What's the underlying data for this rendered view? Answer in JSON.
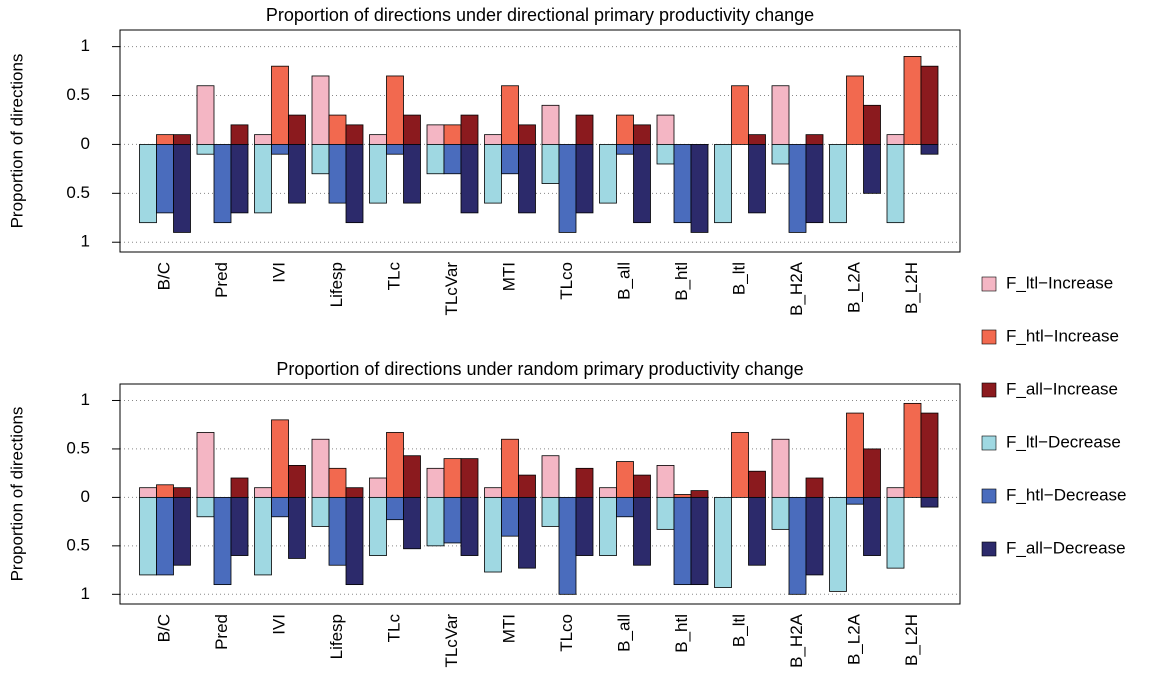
{
  "chart_data": [
    {
      "type": "bar",
      "title": "Proportion of directions under directional primary productivity change",
      "y_label": "Proportion of directions",
      "legend": "right",
      "categories": [
        "B/C",
        "Pred",
        "IVI",
        "Lifesp",
        "TLc",
        "TLcVar",
        "MTI",
        "TLco",
        "B_all",
        "B_htl",
        "B_ltl",
        "B_H2A",
        "B_L2A",
        "B_L2H"
      ],
      "ylim": [
        -1.1,
        1.17
      ],
      "yticks": [
        {
          "value": -1,
          "label": "1"
        },
        {
          "value": -0.5,
          "label": "0.5"
        },
        0,
        0.5,
        1
      ],
      "grid": true,
      "series": [
        {
          "name": "F_ltl−Increase",
          "color": "#f4b6c4",
          "values": [
            0,
            0.6,
            0.1,
            0.7,
            0.1,
            0.2,
            0.1,
            0.4,
            0,
            0.3,
            0,
            0.6,
            0,
            0.1
          ]
        },
        {
          "name": "F_htl−Increase",
          "color": "#f2694f",
          "values": [
            0.1,
            0,
            0.8,
            0.3,
            0.7,
            0.2,
            0.6,
            0,
            0.3,
            0,
            0.6,
            0,
            0.7,
            0.9
          ]
        },
        {
          "name": "F_all−Increase",
          "color": "#8b1a1e",
          "values": [
            0.1,
            0.2,
            0.3,
            0.2,
            0.3,
            0.3,
            0.2,
            0.3,
            0.2,
            0,
            0.1,
            0.1,
            0.4,
            0.8
          ]
        },
        {
          "name": "F_ltl−Decrease",
          "color": "#9fd8e2",
          "values": [
            -0.8,
            -0.1,
            -0.7,
            -0.3,
            -0.6,
            -0.3,
            -0.6,
            -0.4,
            -0.6,
            -0.2,
            -0.8,
            -0.2,
            -0.8,
            -0.8
          ]
        },
        {
          "name": "F_htl−Decrease",
          "color": "#4a6cbd",
          "values": [
            -0.7,
            -0.8,
            -0.1,
            -0.6,
            -0.1,
            -0.3,
            -0.3,
            -0.9,
            -0.1,
            -0.8,
            0,
            -0.9,
            0,
            0
          ]
        },
        {
          "name": "F_all−Decrease",
          "color": "#2c2a6b",
          "values": [
            -0.9,
            -0.7,
            -0.6,
            -0.8,
            -0.6,
            -0.7,
            -0.7,
            -0.7,
            -0.8,
            -0.9,
            -0.7,
            -0.8,
            -0.5,
            -0.1
          ]
        }
      ]
    },
    {
      "type": "bar",
      "title": "Proportion of directions under random primary productivity change",
      "y_label": "Proportion of directions",
      "legend": "right",
      "categories": [
        "B/C",
        "Pred",
        "IVI",
        "Lifesp",
        "TLc",
        "TLcVar",
        "MTI",
        "TLco",
        "B_all",
        "B_htl",
        "B_ltl",
        "B_H2A",
        "B_L2A",
        "B_L2H"
      ],
      "ylim": [
        -1.1,
        1.17
      ],
      "yticks": [
        {
          "value": -1,
          "label": "1"
        },
        {
          "value": -0.5,
          "label": "0.5"
        },
        0,
        0.5,
        1
      ],
      "grid": true,
      "series": [
        {
          "name": "F_ltl−Increase",
          "color": "#f4b6c4",
          "values": [
            0.1,
            0.67,
            0.1,
            0.6,
            0.2,
            0.3,
            0.1,
            0.43,
            0.1,
            0.33,
            0,
            0.6,
            0,
            0.1
          ]
        },
        {
          "name": "F_htl−Increase",
          "color": "#f2694f",
          "values": [
            0.13,
            0,
            0.8,
            0.3,
            0.67,
            0.4,
            0.6,
            0,
            0.37,
            0.03,
            0.67,
            0,
            0.87,
            0.97
          ]
        },
        {
          "name": "F_all−Increase",
          "color": "#8b1a1e",
          "values": [
            0.1,
            0.2,
            0.33,
            0.1,
            0.43,
            0.4,
            0.23,
            0.3,
            0.23,
            0.07,
            0.27,
            0.2,
            0.5,
            0.87
          ]
        },
        {
          "name": "F_ltl−Decrease",
          "color": "#9fd8e2",
          "values": [
            -0.8,
            -0.2,
            -0.8,
            -0.3,
            -0.6,
            -0.5,
            -0.77,
            -0.3,
            -0.6,
            -0.33,
            -0.93,
            -0.33,
            -0.97,
            -0.73
          ]
        },
        {
          "name": "F_htl−Decrease",
          "color": "#4a6cbd",
          "values": [
            -0.8,
            -0.9,
            -0.2,
            -0.7,
            -0.23,
            -0.47,
            -0.4,
            -1.0,
            -0.2,
            -0.9,
            0,
            -1.0,
            -0.07,
            0
          ]
        },
        {
          "name": "F_all−Decrease",
          "color": "#2c2a6b",
          "values": [
            -0.7,
            -0.6,
            -0.63,
            -0.9,
            -0.53,
            -0.6,
            -0.73,
            -0.6,
            -0.7,
            -0.9,
            -0.7,
            -0.8,
            -0.6,
            -0.1
          ]
        }
      ]
    }
  ]
}
